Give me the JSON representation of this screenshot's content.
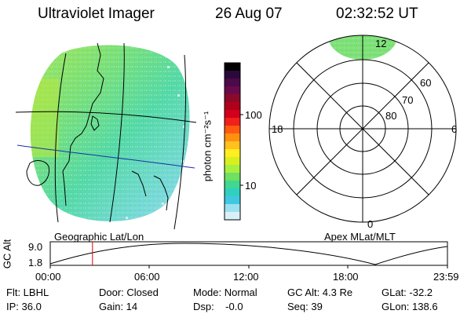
{
  "header": {
    "title": "Ultraviolet Imager",
    "date": "26 Aug 07",
    "time": "02:32:52 UT"
  },
  "geographic_panel": {
    "label": "Geographic Lat/Lon"
  },
  "polar_panel": {
    "label": "Apex MLat/MLT",
    "mlt_labels": {
      "top": "12",
      "left": "18",
      "right": "6",
      "bottom": "0"
    },
    "mlat_labels": [
      "60",
      "70",
      "80"
    ]
  },
  "colorbar": {
    "unit_label": "photon cm⁻²s⁻¹",
    "tick_labels": [
      "100",
      "10"
    ],
    "colors": [
      "#000000",
      "#2a0a3a",
      "#4b0a4a",
      "#6a0a4a",
      "#8b0a2a",
      "#b0001a",
      "#d2001a",
      "#f0201a",
      "#ff5a10",
      "#ff9010",
      "#ffc020",
      "#ffee20",
      "#d8f020",
      "#a8f040",
      "#70e060",
      "#40d890",
      "#30d0c0",
      "#40c8e0",
      "#9be0ef",
      "#d8f0f6"
    ]
  },
  "altitude_plot": {
    "ylabel": "GC Alt",
    "y_ticks": [
      "9.0",
      "1.8"
    ],
    "x_ticks": [
      "00:00",
      "06:00",
      "12:00",
      "18:00",
      "23:59"
    ],
    "current_time_marker": "02:32:52"
  },
  "info": {
    "flt": "Flt: LBHL",
    "ip": "IP: 36.0",
    "door": "Door: Closed",
    "gain": "Gain: 14",
    "mode": "Mode: Normal",
    "dsp": "Dsp:    -0.0",
    "gc_alt": "GC Alt: 4.3 Re",
    "seq": "Seq: 39",
    "glat": "GLat: -32.2",
    "glon": "GLon: 138.6"
  }
}
